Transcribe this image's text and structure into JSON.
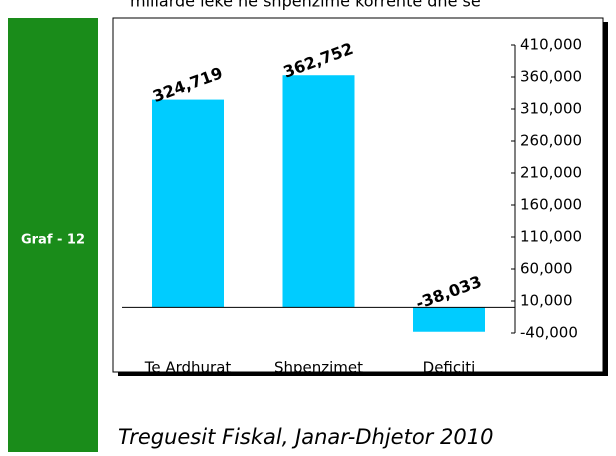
{
  "header": {
    "text": "miliardë lekë në shpenzime korrente dhe së"
  },
  "sidebar": {
    "label": "Graf - 12"
  },
  "chart_data": {
    "type": "bar",
    "categories": [
      "Te Ardhurat",
      "Shpenzimet",
      "Deficiti"
    ],
    "values": [
      324719,
      362752,
      -38033
    ],
    "value_labels": [
      "324,719",
      "362,752",
      "-38,033"
    ],
    "color": "#00ccff",
    "ylim": [
      -40000,
      410000
    ],
    "yticks": [
      {
        "value": 410000,
        "label": "410,000"
      },
      {
        "value": 360000,
        "label": "360,000"
      },
      {
        "value": 310000,
        "label": "310,000"
      },
      {
        "value": 260000,
        "label": "260,000"
      },
      {
        "value": 210000,
        "label": "210,000"
      },
      {
        "value": 160000,
        "label": "160,000"
      },
      {
        "value": 110000,
        "label": "110,000"
      },
      {
        "value": 60000,
        "label": "60,000"
      },
      {
        "value": 10000,
        "label": "10,000"
      },
      {
        "value": -40000,
        "label": "-40,000"
      }
    ],
    "y_axis_side": "right"
  },
  "footer": {
    "caption": "Treguesit Fiskal, Janar-Dhjetor 2010"
  }
}
